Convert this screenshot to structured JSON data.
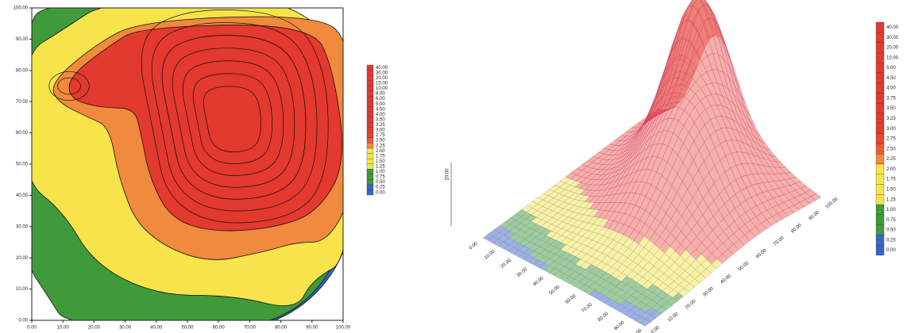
{
  "chart_data": [
    {
      "type": "contour",
      "xlim": [
        0,
        100
      ],
      "xticks": [
        {
          "value": 0,
          "label": "0.00"
        },
        {
          "value": 10,
          "label": "10.00"
        },
        {
          "value": 20,
          "label": "20.00"
        },
        {
          "value": 30,
          "label": "30.00"
        },
        {
          "value": 40,
          "label": "40.00"
        },
        {
          "value": 50,
          "label": "50.00"
        },
        {
          "value": 60,
          "label": "60.00"
        },
        {
          "value": 70,
          "label": "70.00"
        },
        {
          "value": 80,
          "label": "80.00"
        },
        {
          "value": 90,
          "label": "90.00"
        },
        {
          "value": 100,
          "label": "100.00"
        }
      ],
      "ylim": [
        0,
        100
      ],
      "yticks": [
        {
          "value": 0,
          "label": "0.00"
        },
        {
          "value": 10,
          "label": "10.00"
        },
        {
          "value": 20,
          "label": "20.00"
        },
        {
          "value": 30,
          "label": "30.00"
        },
        {
          "value": 40,
          "label": "40.00"
        },
        {
          "value": 50,
          "label": "50.00"
        },
        {
          "value": 60,
          "label": "60.00"
        },
        {
          "value": 70,
          "label": "70.00"
        },
        {
          "value": 80,
          "label": "80.00"
        },
        {
          "value": 90,
          "label": "90.00"
        },
        {
          "value": 100,
          "label": "100.00"
        }
      ],
      "levels": [
        {
          "value": 40,
          "label": "40.00"
        },
        {
          "value": 30,
          "label": "30.00"
        },
        {
          "value": 20,
          "label": "20.00"
        },
        {
          "value": 15,
          "label": "15.00"
        },
        {
          "value": 10,
          "label": "10.00"
        },
        {
          "value": 8,
          "label": "8.00"
        },
        {
          "value": 6,
          "label": "6.00"
        },
        {
          "value": 5,
          "label": "5.00"
        },
        {
          "value": 4.5,
          "label": "4.50"
        },
        {
          "value": 4,
          "label": "4.00"
        },
        {
          "value": 3.5,
          "label": "3.50"
        },
        {
          "value": 3.25,
          "label": "3.25"
        },
        {
          "value": 3,
          "label": "3.00"
        },
        {
          "value": 2.75,
          "label": "2.75"
        },
        {
          "value": 2.5,
          "label": "2.50"
        },
        {
          "value": 2.25,
          "label": "2.25"
        },
        {
          "value": 2,
          "label": "2.00"
        },
        {
          "value": 1.75,
          "label": "1.75"
        },
        {
          "value": 1.5,
          "label": "1.50"
        },
        {
          "value": 1.25,
          "label": "1.25"
        },
        {
          "value": 1,
          "label": "1.00"
        },
        {
          "value": 0.75,
          "label": "0.75"
        },
        {
          "value": 0.5,
          "label": "0.50"
        },
        {
          "value": 0.25,
          "label": "0.25"
        },
        {
          "value": 0,
          "label": "0.00"
        }
      ],
      "colors": [
        "#e4392e",
        "#e4392e",
        "#e4392e",
        "#e4392e",
        "#e4392e",
        "#e4392e",
        "#e4392e",
        "#e4392e",
        "#e4392e",
        "#e4392e",
        "#e4392e",
        "#e4392e",
        "#e4392e",
        "#e8452f",
        "#ec5a33",
        "#f08a3c",
        "#f6e44a",
        "#f6e44a",
        "#f6e44a",
        "#f6e44a",
        "#3f9a3a",
        "#3f9a3a",
        "#3f9a3a",
        "#3b63c8",
        "#3b63c8"
      ]
    },
    {
      "type": "surface",
      "xticks": [
        {
          "value": 0,
          "label": "0.00"
        },
        {
          "value": 10,
          "label": "10.00"
        },
        {
          "value": 20,
          "label": "20.00"
        },
        {
          "value": 30,
          "label": "30.00"
        },
        {
          "value": 40,
          "label": "40.00"
        },
        {
          "value": 50,
          "label": "50.00"
        },
        {
          "value": 60,
          "label": "60.00"
        },
        {
          "value": 70,
          "label": "70.00"
        },
        {
          "value": 80,
          "label": "80.00"
        },
        {
          "value": 90,
          "label": "90.00"
        },
        {
          "value": 100,
          "label": "100.00"
        }
      ],
      "yticks": [
        {
          "value": 0,
          "label": "0.00"
        },
        {
          "value": 10,
          "label": "10.00"
        },
        {
          "value": 20,
          "label": "20.00"
        },
        {
          "value": 30,
          "label": "30.00"
        },
        {
          "value": 40,
          "label": "40.00"
        },
        {
          "value": 50,
          "label": "50.00"
        },
        {
          "value": 60,
          "label": "60.00"
        },
        {
          "value": 70,
          "label": "70.00"
        },
        {
          "value": 80,
          "label": "80.00"
        },
        {
          "value": 90,
          "label": "90.00"
        },
        {
          "value": 100,
          "label": "100.00"
        }
      ],
      "zticks": [
        {
          "value": 20,
          "label": "20.00"
        }
      ],
      "levels": [
        {
          "value": 40,
          "label": "40.00"
        },
        {
          "value": 30,
          "label": "30.00"
        },
        {
          "value": 20,
          "label": "20.00"
        },
        {
          "value": 10,
          "label": "10.00"
        },
        {
          "value": 5,
          "label": "5.00"
        },
        {
          "value": 4.5,
          "label": "4.50"
        },
        {
          "value": 4,
          "label": "4.00"
        },
        {
          "value": 3.75,
          "label": "3.75"
        },
        {
          "value": 3.5,
          "label": "3.50"
        },
        {
          "value": 3.25,
          "label": "3.25"
        },
        {
          "value": 3,
          "label": "3.00"
        },
        {
          "value": 2.75,
          "label": "2.75"
        },
        {
          "value": 2.5,
          "label": "2.50"
        },
        {
          "value": 2.25,
          "label": "2.25"
        },
        {
          "value": 2,
          "label": "2.00"
        },
        {
          "value": 1.75,
          "label": "1.75"
        },
        {
          "value": 1.5,
          "label": "1.50"
        },
        {
          "value": 1.25,
          "label": "1.25"
        },
        {
          "value": 1,
          "label": "1.00"
        },
        {
          "value": 0.75,
          "label": "0.75"
        },
        {
          "value": 0.5,
          "label": "0.50"
        },
        {
          "value": 0.25,
          "label": "0.25"
        },
        {
          "value": 0,
          "label": "0.00"
        }
      ],
      "colors": [
        "#e4392e",
        "#e4392e",
        "#e4392e",
        "#e4392e",
        "#e4392e",
        "#e4392e",
        "#e4392e",
        "#e4392e",
        "#e4392e",
        "#e4392e",
        "#e4392e",
        "#e8452f",
        "#ec5a33",
        "#f08a3c",
        "#f6e44a",
        "#f6e44a",
        "#f6e44a",
        "#f6e44a",
        "#3f9a3a",
        "#3f9a3a",
        "#3f9a3a",
        "#3b63c8",
        "#3b63c8"
      ]
    }
  ]
}
